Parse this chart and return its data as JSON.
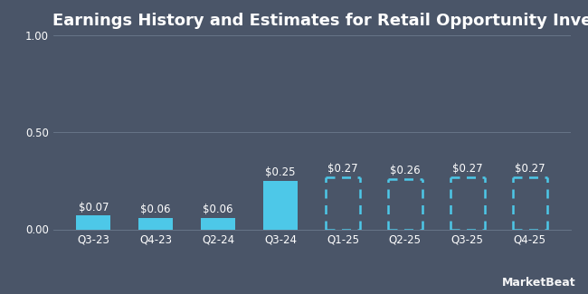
{
  "title": "Earnings History and Estimates for Retail Opportunity Investments",
  "categories": [
    "Q3-23",
    "Q4-23",
    "Q2-24",
    "Q3-24",
    "Q1-25",
    "Q2-25",
    "Q3-25",
    "Q4-25"
  ],
  "values": [
    0.07,
    0.06,
    0.06,
    0.25,
    0.27,
    0.26,
    0.27,
    0.27
  ],
  "labels": [
    "$0.07",
    "$0.06",
    "$0.06",
    "$0.25",
    "$0.27",
    "$0.26",
    "$0.27",
    "$0.27"
  ],
  "is_estimate": [
    false,
    false,
    false,
    false,
    true,
    true,
    true,
    true
  ],
  "bar_color": "#4DC8E8",
  "background_color": "#4a5568",
  "text_color": "#ffffff",
  "grid_color": "#6b7a8d",
  "ylim": [
    0,
    1.0
  ],
  "yticks": [
    0.0,
    0.5,
    1.0
  ],
  "ytick_labels": [
    "0.00",
    "0.50",
    "1.00"
  ],
  "title_fontsize": 13,
  "label_fontsize": 8.5,
  "tick_fontsize": 8.5,
  "watermark": "MarketBeat",
  "watermark_fontsize": 9,
  "bar_width": 0.55,
  "dash_lw": 1.8,
  "dash_pattern": [
    4,
    3
  ]
}
